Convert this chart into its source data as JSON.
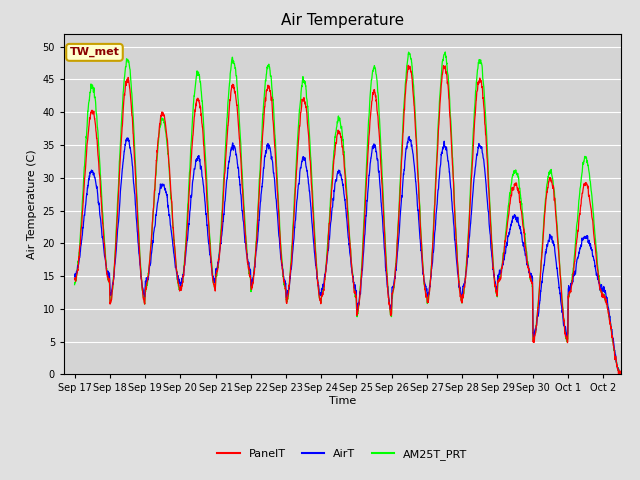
{
  "title": "Air Temperature",
  "ylabel": "Air Temperature (C)",
  "xlabel": "Time",
  "legend_label": "TW_met",
  "series_labels": [
    "PanelT",
    "AirT",
    "AM25T_PRT"
  ],
  "series_colors": [
    "red",
    "blue",
    "lime"
  ],
  "ylim": [
    0,
    52
  ],
  "yticks": [
    0,
    5,
    10,
    15,
    20,
    25,
    30,
    35,
    40,
    45,
    50
  ],
  "xtick_labels": [
    "Sep 17",
    "Sep 18",
    "Sep 19",
    "Sep 20",
    "Sep 21",
    "Sep 22",
    "Sep 23",
    "Sep 24",
    "Sep 25",
    "Sep 26",
    "Sep 27",
    "Sep 28",
    "Sep 29",
    "Sep 30",
    "Oct 1",
    "Oct 2"
  ],
  "background_color": "#e0e0e0",
  "plot_bg_color": "#e0e0e0",
  "inner_bg_color": "#d4d4d4",
  "grid_color": "#ffffff",
  "title_fontsize": 11,
  "label_fontsize": 8,
  "tick_fontsize": 7,
  "day_mins": [
    14,
    11,
    13,
    13,
    15,
    13,
    11,
    12,
    9,
    12,
    11,
    12,
    14,
    5,
    12,
    12
  ],
  "panel_peaks": [
    40,
    45,
    40,
    42,
    44,
    44,
    42,
    37,
    43,
    47,
    47,
    45,
    29,
    30,
    29,
    0
  ],
  "air_peaks": [
    31,
    36,
    29,
    33,
    35,
    35,
    33,
    31,
    35,
    36,
    35,
    35,
    24,
    21,
    21,
    0
  ],
  "am25_peaks": [
    44,
    48,
    39,
    46,
    48,
    47,
    45,
    39,
    47,
    49,
    49,
    48,
    31,
    31,
    33,
    0
  ]
}
